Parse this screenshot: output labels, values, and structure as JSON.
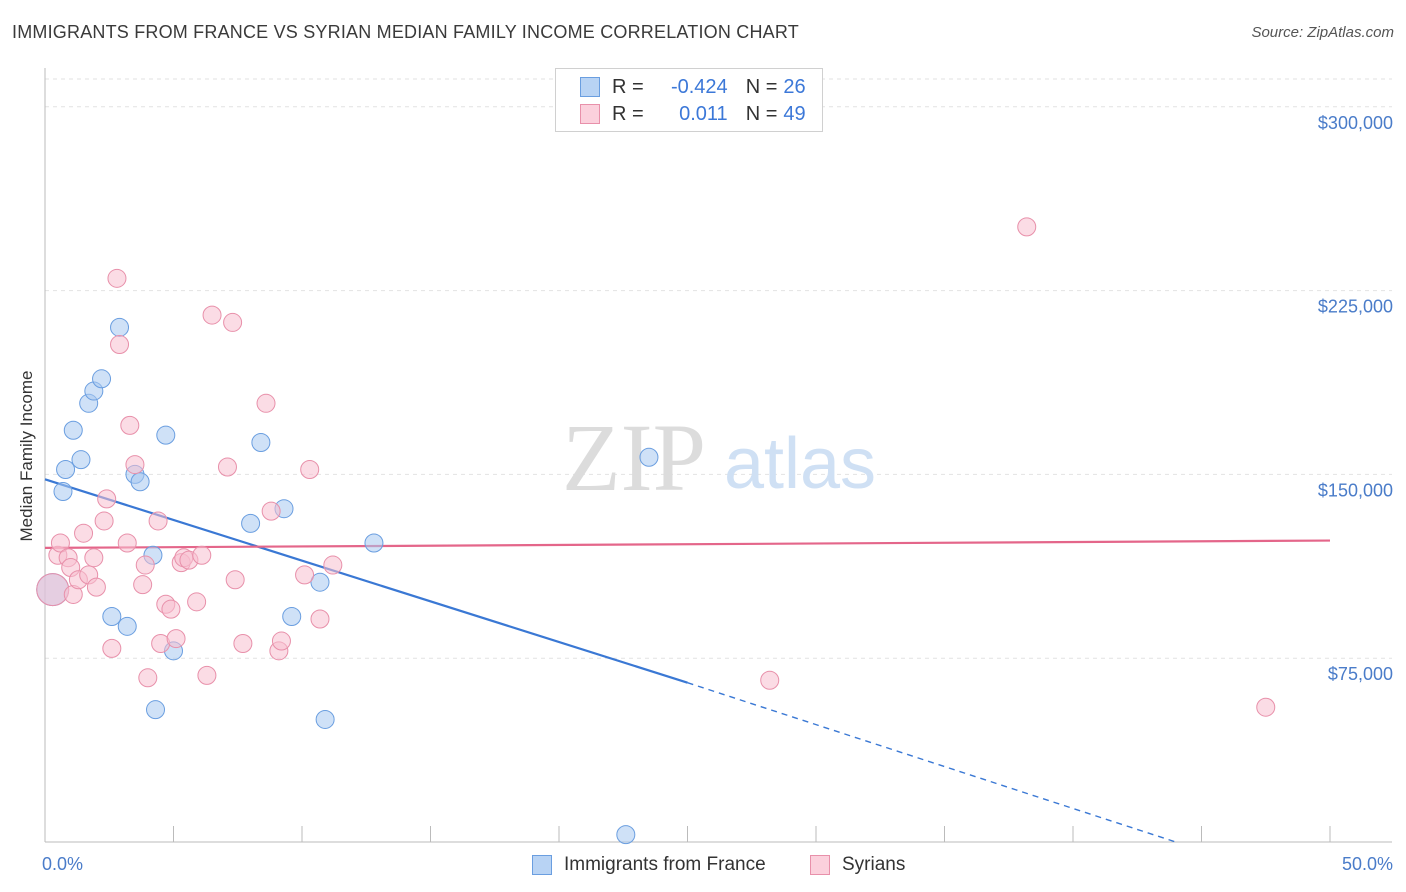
{
  "title": "IMMIGRANTS FROM FRANCE VS SYRIAN MEDIAN FAMILY INCOME CORRELATION CHART",
  "source": "Source: ZipAtlas.com",
  "watermark": {
    "zip": "ZIP",
    "atlas": "atlas"
  },
  "legend": {
    "rows": [
      {
        "r_label": "R =",
        "r_value": "-0.424",
        "n_label": "N =",
        "n_value": "26",
        "color": "#a8c8f0",
        "border": "#6a9ee0"
      },
      {
        "r_label": "R =",
        "r_value": "0.011",
        "n_label": "N =",
        "n_value": "49",
        "color": "#f8c0d0",
        "border": "#e890aa"
      }
    ]
  },
  "chart_data": {
    "type": "scatter",
    "title": "IMMIGRANTS FROM FRANCE VS SYRIAN MEDIAN FAMILY INCOME CORRELATION CHART",
    "xlabel": "",
    "ylabel": "Median Family Income",
    "xlim": [
      0,
      50
    ],
    "ylim": [
      0,
      315000
    ],
    "x_tick_labels": [
      "0.0%",
      "50.0%"
    ],
    "y_ticks": [
      75000,
      150000,
      225000,
      300000
    ],
    "y_tick_labels": [
      "$75,000",
      "$150,000",
      "$225,000",
      "$300,000"
    ],
    "grid": true,
    "legend_position": "top-center",
    "series": [
      {
        "name": "Immigrants from France",
        "color": "#a8c8f0",
        "stroke": "#6a9ee0",
        "line_color": "#3a78d4",
        "points": [
          [
            0.3,
            103000
          ],
          [
            0.7,
            143000
          ],
          [
            0.8,
            152000
          ],
          [
            1.1,
            168000
          ],
          [
            1.4,
            156000
          ],
          [
            1.7,
            179000
          ],
          [
            1.9,
            184000
          ],
          [
            2.2,
            189000
          ],
          [
            2.6,
            92000
          ],
          [
            2.9,
            210000
          ],
          [
            3.2,
            88000
          ],
          [
            3.5,
            150000
          ],
          [
            3.7,
            147000
          ],
          [
            4.2,
            117000
          ],
          [
            4.3,
            54000
          ],
          [
            4.7,
            166000
          ],
          [
            5.0,
            78000
          ],
          [
            8.0,
            130000
          ],
          [
            8.4,
            163000
          ],
          [
            9.3,
            136000
          ],
          [
            9.6,
            92000
          ],
          [
            10.7,
            106000
          ],
          [
            10.9,
            50000
          ],
          [
            12.8,
            122000
          ],
          [
            22.6,
            3000
          ],
          [
            23.5,
            157000
          ]
        ],
        "trend": {
          "x": [
            0,
            25
          ],
          "y": [
            148000,
            65000
          ],
          "dashed_to": [
            44,
            0
          ]
        }
      },
      {
        "name": "Syrians",
        "color": "#f8c0d0",
        "stroke": "#e890aa",
        "line_color": "#e4668a",
        "points": [
          [
            0.3,
            103000
          ],
          [
            0.5,
            117000
          ],
          [
            0.6,
            122000
          ],
          [
            0.9,
            116000
          ],
          [
            1.0,
            112000
          ],
          [
            1.1,
            101000
          ],
          [
            1.3,
            107000
          ],
          [
            1.5,
            126000
          ],
          [
            1.7,
            109000
          ],
          [
            1.9,
            116000
          ],
          [
            2.0,
            104000
          ],
          [
            2.3,
            131000
          ],
          [
            2.4,
            140000
          ],
          [
            2.6,
            79000
          ],
          [
            2.8,
            230000
          ],
          [
            2.9,
            203000
          ],
          [
            3.2,
            122000
          ],
          [
            3.3,
            170000
          ],
          [
            3.5,
            154000
          ],
          [
            3.8,
            105000
          ],
          [
            3.9,
            113000
          ],
          [
            4.0,
            67000
          ],
          [
            4.4,
            131000
          ],
          [
            4.5,
            81000
          ],
          [
            4.7,
            97000
          ],
          [
            4.9,
            95000
          ],
          [
            5.1,
            83000
          ],
          [
            5.3,
            114000
          ],
          [
            5.4,
            116000
          ],
          [
            5.6,
            115000
          ],
          [
            5.9,
            98000
          ],
          [
            6.1,
            117000
          ],
          [
            6.3,
            68000
          ],
          [
            6.5,
            215000
          ],
          [
            7.1,
            153000
          ],
          [
            7.3,
            212000
          ],
          [
            7.4,
            107000
          ],
          [
            7.7,
            81000
          ],
          [
            8.6,
            179000
          ],
          [
            8.8,
            135000
          ],
          [
            9.1,
            78000
          ],
          [
            9.2,
            82000
          ],
          [
            10.1,
            109000
          ],
          [
            10.3,
            152000
          ],
          [
            10.7,
            91000
          ],
          [
            11.2,
            113000
          ],
          [
            28.2,
            66000
          ],
          [
            38.2,
            251000
          ],
          [
            47.5,
            55000
          ]
        ],
        "trend": {
          "x": [
            0,
            50
          ],
          "y": [
            120000,
            123000
          ]
        }
      }
    ]
  }
}
